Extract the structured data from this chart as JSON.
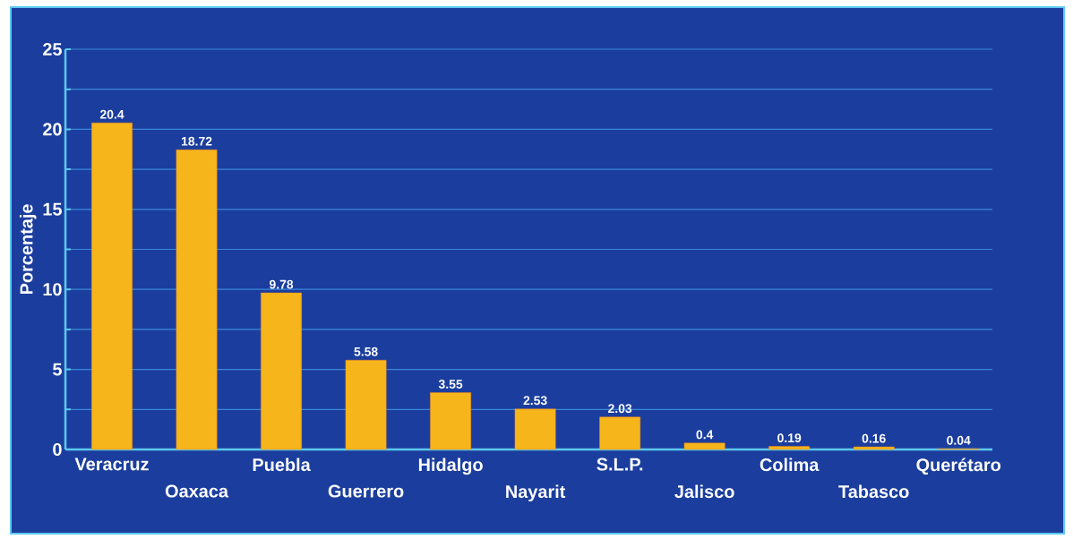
{
  "chart_data": {
    "type": "bar",
    "ylabel": "Porcentaje",
    "categories": [
      "Veracruz",
      "Oaxaca",
      "Puebla",
      "Guerrero",
      "Hidalgo",
      "Nayarit",
      "S.L.P.",
      "Jalisco",
      "Colima",
      "Tabasco",
      "Querétaro"
    ],
    "values": [
      20.4,
      18.72,
      9.78,
      5.58,
      3.55,
      2.53,
      2.03,
      0.4,
      0.19,
      0.16,
      0.04
    ],
    "color": "#f7b51c",
    "data_labels": true,
    "grid": "y",
    "ylim": [
      0,
      25
    ],
    "yticks": [
      0,
      {
        "value": 2.5,
        "label": null
      },
      5,
      {
        "value": 7.5,
        "label": null
      },
      10,
      {
        "value": 12.5,
        "label": null
      },
      15,
      {
        "value": 17.5,
        "label": null
      },
      20,
      {
        "value": 22.5,
        "label": null
      },
      25
    ]
  }
}
